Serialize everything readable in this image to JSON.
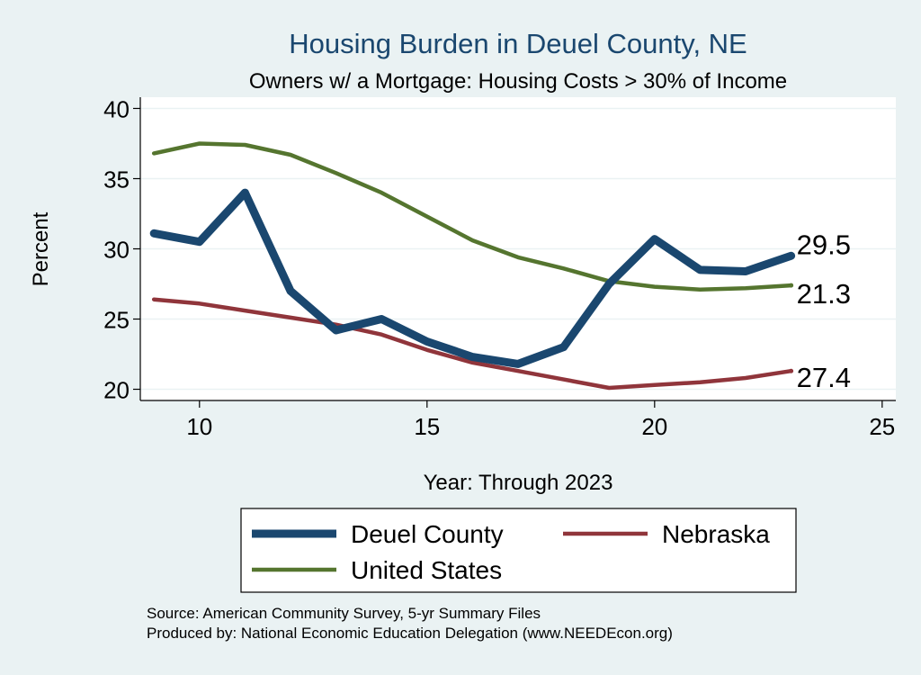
{
  "chart_data": {
    "type": "line",
    "title": "Housing Burden in Deuel County, NE",
    "subtitle": "Owners w/ a Mortgage: Housing Costs > 30% of Income",
    "xlabel": "Year: Through 2023",
    "ylabel": "Percent",
    "xlim": [
      8.7,
      25.3
    ],
    "ylim": [
      19.2,
      40.8
    ],
    "x_ticks": [
      10,
      15,
      20,
      25
    ],
    "y_ticks": [
      20,
      25,
      30,
      35,
      40
    ],
    "grid": true,
    "legend_position": "bottom",
    "x": [
      9,
      10,
      11,
      12,
      13,
      14,
      15,
      16,
      17,
      18,
      19,
      20,
      21,
      22,
      23
    ],
    "series": [
      {
        "name": "Deuel County",
        "color": "#1a476f",
        "values": [
          31.1,
          30.5,
          34.0,
          27.0,
          24.2,
          25.0,
          23.4,
          22.3,
          21.8,
          23.0,
          27.5,
          30.7,
          28.5,
          28.4,
          29.5
        ]
      },
      {
        "name": "Nebraska",
        "color": "#90353b",
        "values": [
          26.4,
          26.1,
          25.6,
          25.1,
          24.6,
          23.9,
          22.8,
          21.9,
          21.3,
          20.7,
          20.1,
          20.3,
          20.5,
          20.8,
          21.3
        ]
      },
      {
        "name": "United States",
        "color": "#55752f",
        "values": [
          36.8,
          37.5,
          37.4,
          36.7,
          35.4,
          34.0,
          32.3,
          30.6,
          29.4,
          28.6,
          27.7,
          27.3,
          27.1,
          27.2,
          27.4
        ]
      }
    ],
    "end_labels": [
      "29.5",
      "27.4",
      "21.3"
    ]
  },
  "source_note": "Source: American Community Survey, 5-yr Summary Files",
  "produced_note": "Produced by: National Economic Education Delegation (www.NEEDEcon.org)"
}
